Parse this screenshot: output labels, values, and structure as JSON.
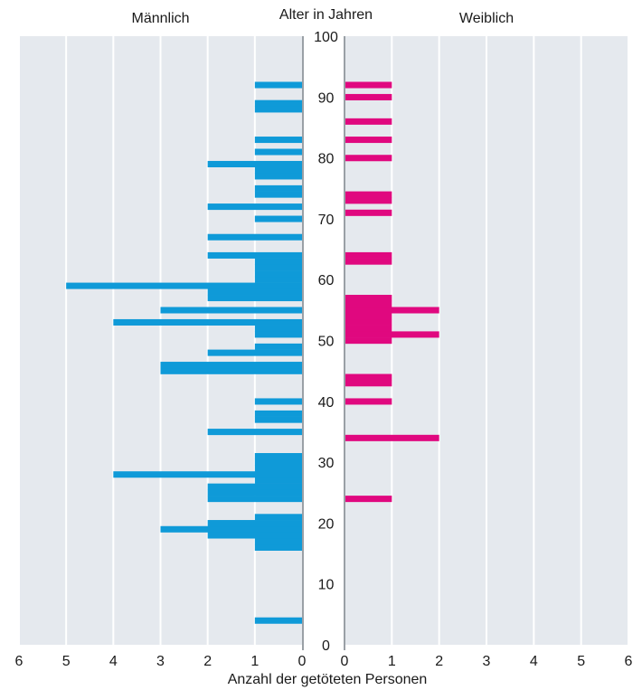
{
  "chart_data": {
    "type": "bar",
    "title": "",
    "headers": {
      "left": "Männlich",
      "center": "Alter in Jahren",
      "right": "Weiblich"
    },
    "xlabel": "Anzahl der getöteten Personen",
    "ylabel": "Alter in Jahren",
    "x_ticks": [
      "6",
      "5",
      "4",
      "3",
      "2",
      "1",
      "0",
      "0",
      "1",
      "2",
      "3",
      "4",
      "5",
      "6"
    ],
    "y_ticks": [
      "0",
      "10",
      "20",
      "30",
      "40",
      "50",
      "60",
      "70",
      "80",
      "90",
      "100"
    ],
    "xlim": [
      0,
      6
    ],
    "ylim": [
      0,
      100
    ],
    "grid": true,
    "series": [
      {
        "name": "Männlich",
        "side": "left",
        "color": "#0f9ad8",
        "ages": [
          4,
          16,
          17,
          18,
          19,
          20,
          21,
          24,
          25,
          26,
          27,
          28,
          29,
          30,
          31,
          35,
          37,
          38,
          40,
          45,
          46,
          48,
          49,
          51,
          52,
          53,
          55,
          57,
          58,
          59,
          60,
          61,
          62,
          63,
          64,
          67,
          70,
          72,
          74,
          75,
          77,
          78,
          79,
          81,
          83,
          88,
          89,
          92
        ],
        "values": [
          1,
          1,
          1,
          2,
          3,
          2,
          1,
          2,
          2,
          2,
          1,
          4,
          1,
          1,
          1,
          2,
          1,
          1,
          1,
          3,
          3,
          2,
          1,
          1,
          1,
          4,
          3,
          2,
          2,
          5,
          1,
          1,
          1,
          1,
          2,
          2,
          1,
          2,
          1,
          1,
          1,
          1,
          2,
          1,
          1,
          1,
          1,
          1
        ]
      },
      {
        "name": "Weiblich",
        "side": "right",
        "color": "#e0087f",
        "ages": [
          24,
          34,
          40,
          43,
          44,
          50,
          51,
          52,
          53,
          54,
          55,
          56,
          57,
          63,
          64,
          71,
          73,
          74,
          80,
          83,
          86,
          90,
          92
        ],
        "values": [
          1,
          2,
          1,
          1,
          1,
          1,
          2,
          1,
          1,
          1,
          2,
          1,
          1,
          1,
          1,
          1,
          1,
          1,
          1,
          1,
          1,
          1,
          1
        ]
      }
    ]
  }
}
